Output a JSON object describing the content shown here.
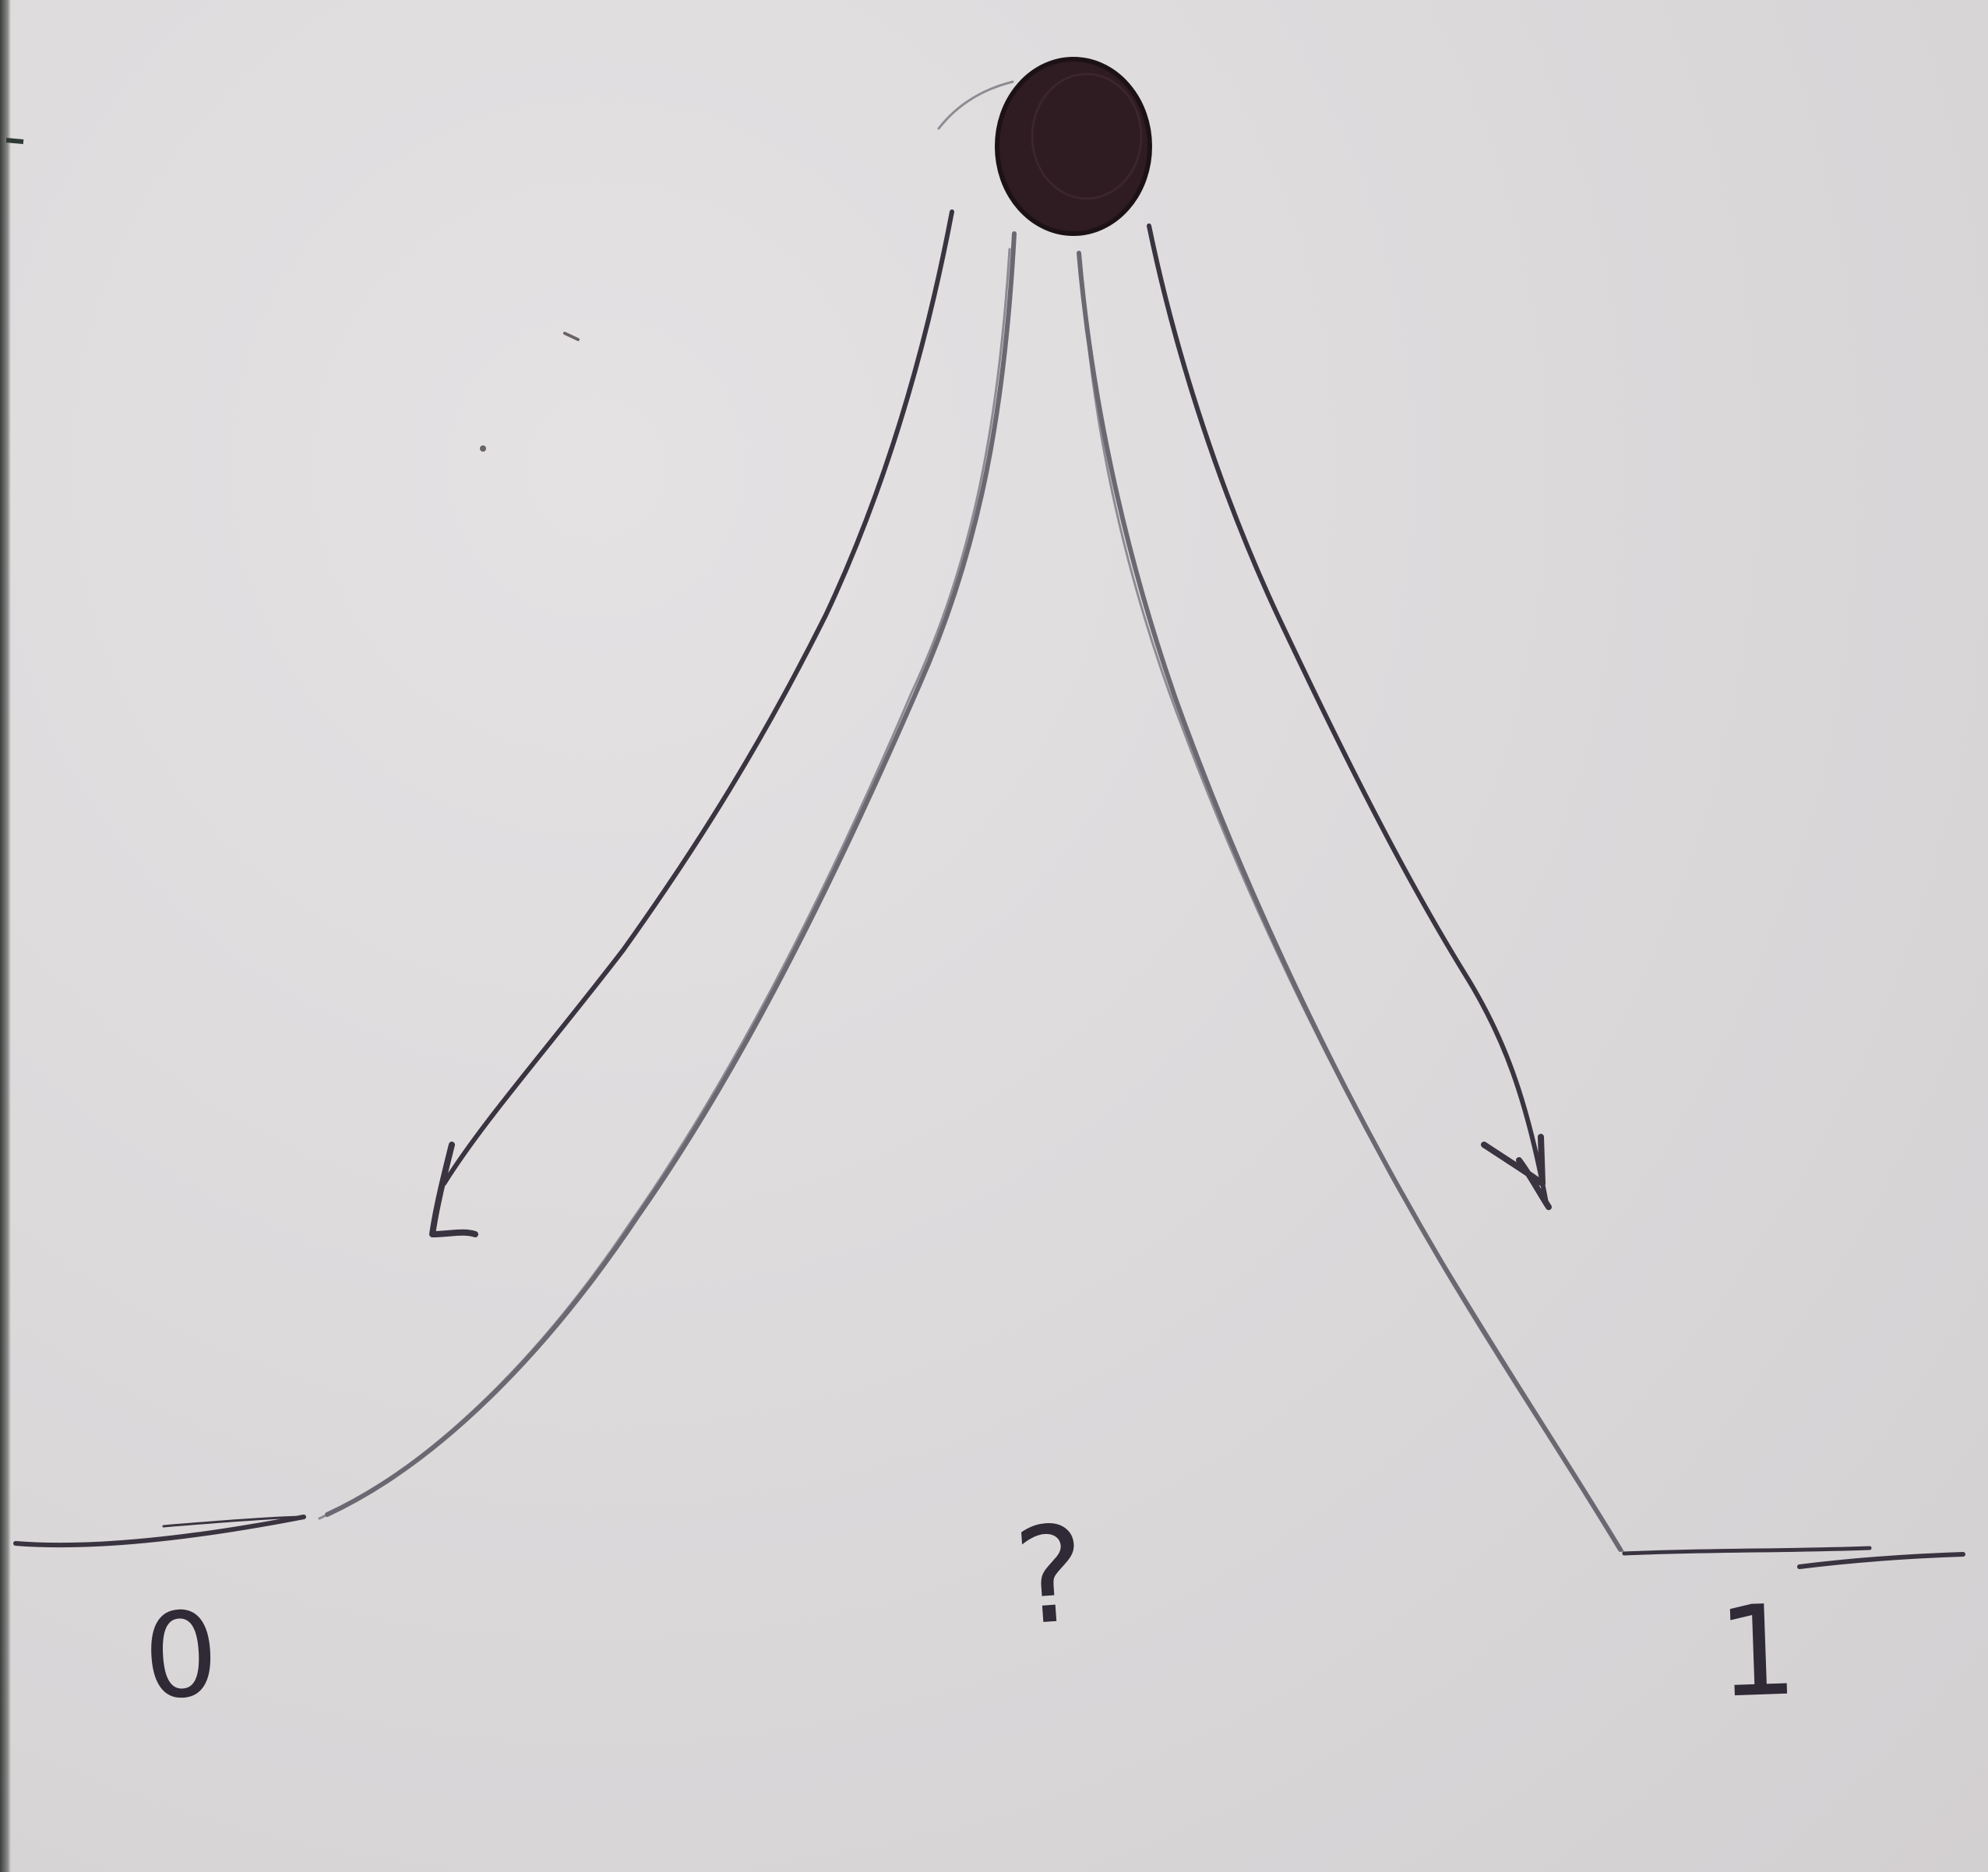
{
  "labels": {
    "left": "0",
    "middle": "?",
    "right": "1"
  },
  "colors": {
    "paper": "#dcdadb",
    "ink": "#3a3340",
    "ball": "#2e1c22",
    "pencil": "#6b6872"
  }
}
